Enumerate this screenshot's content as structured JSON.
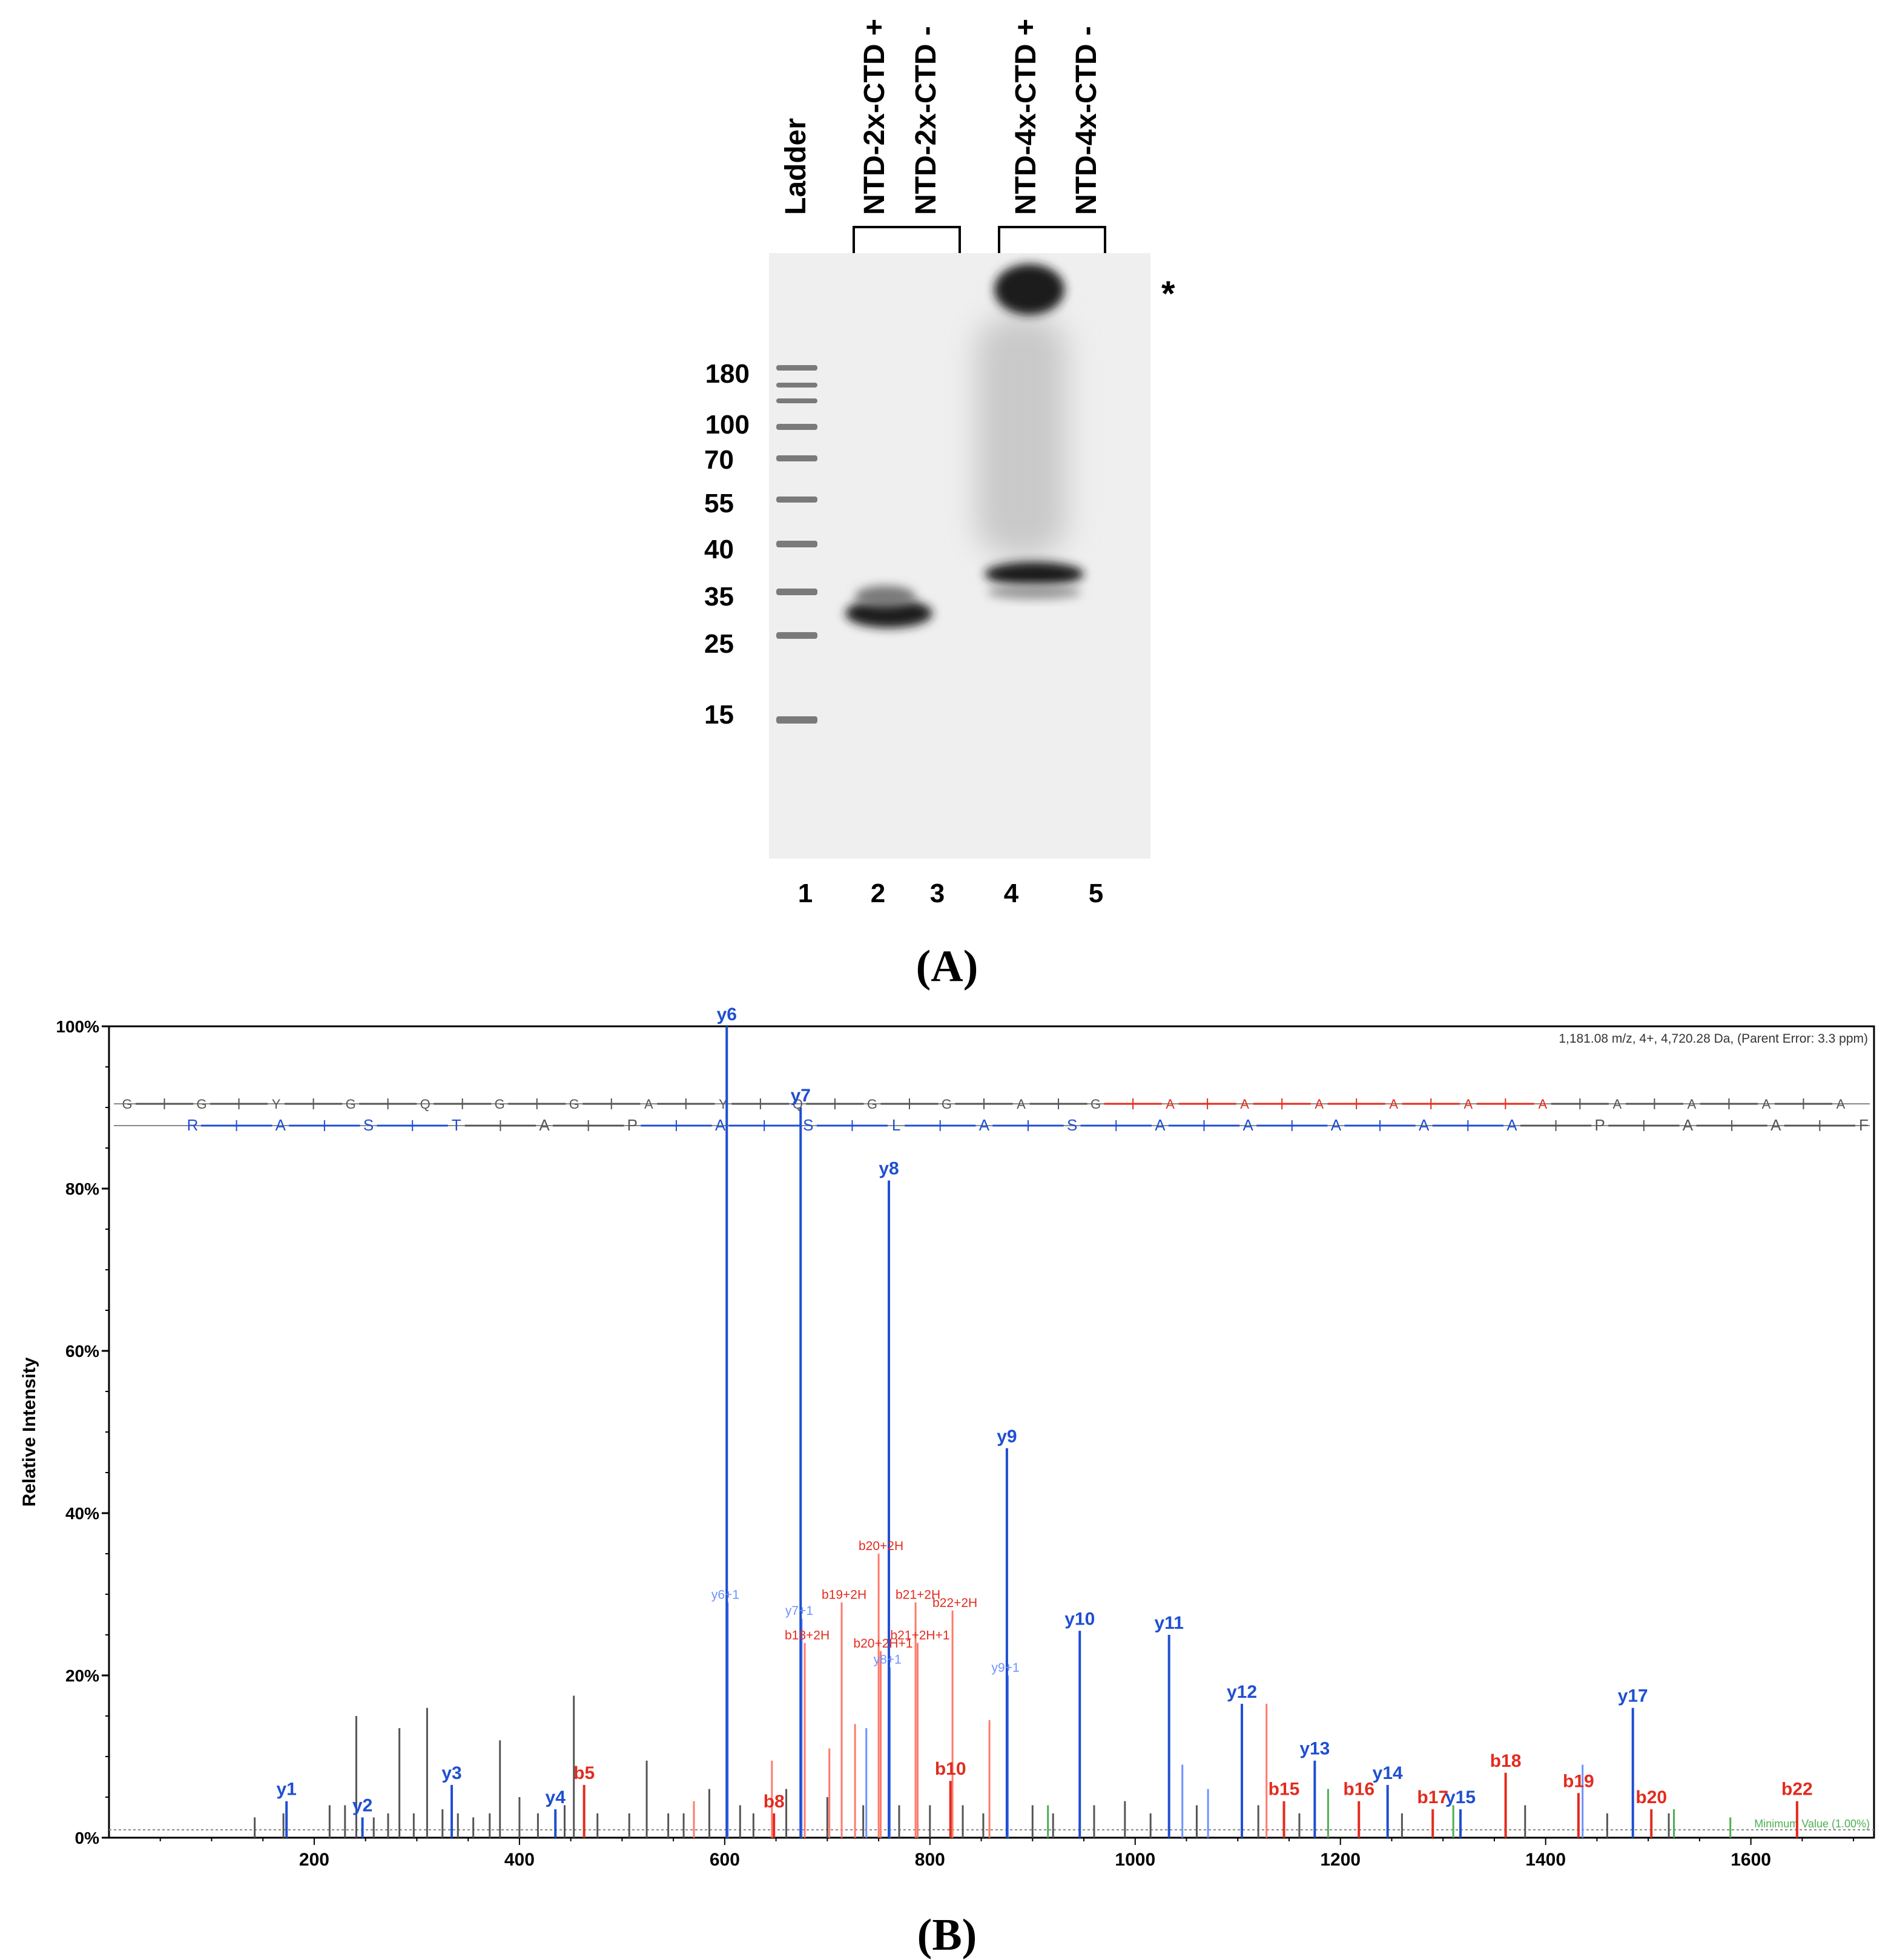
{
  "panelA": {
    "caption": "(A)",
    "lane_headers": [
      "Ladder",
      "NTD-2x-CTD +",
      "NTD-2x-CTD -",
      "NTD-4x-CTD +",
      "NTD-4x-CTD -"
    ],
    "mw_markers": [
      "180",
      "100",
      "70",
      "55",
      "40",
      "35",
      "25",
      "15"
    ],
    "lane_numbers": [
      "1",
      "2",
      "3",
      "4",
      "5"
    ],
    "asterisk": "*",
    "colors": {
      "gel_background": "#efefef",
      "band": "#222222",
      "text": "#000000"
    }
  },
  "panelB": {
    "caption": "(B)",
    "precursor_info": "1,181.08 m/z, 4+, 4,720.28 Da, (Parent Error: 3.3 ppm)",
    "min_value_label": "Minimum Value (1.00%)",
    "sequence_b": [
      "G",
      "G",
      "Y",
      "G",
      "Q",
      "G",
      "G",
      "A",
      "Y",
      "Q",
      "G",
      "G",
      "A",
      "G",
      "A",
      "A",
      "A",
      "A",
      "A",
      "A",
      "A",
      "A",
      "A",
      "A"
    ],
    "sequence_y": [
      "R",
      "A",
      "S",
      "T",
      "A",
      "P",
      "A",
      "S",
      "L",
      "A",
      "S",
      "A",
      "A",
      "A",
      "A",
      "A",
      "P",
      "A",
      "A",
      "F"
    ],
    "colors": {
      "b_ion": "#e32b1e",
      "y_ion": "#1f4fd1",
      "b_ion_light": "#ff7a6a",
      "y_ion_light": "#6f92ff",
      "unassigned": "#555555",
      "other": "#4caf50"
    }
  },
  "chart_data": {
    "type": "bar",
    "title": "",
    "xlabel": "",
    "ylabel": "Relative Intensity",
    "xlim": [
      0,
      1720
    ],
    "ylim": [
      0,
      100
    ],
    "x_ticks": [
      200,
      400,
      600,
      800,
      1000,
      1200,
      1400,
      1600
    ],
    "y_ticks": [
      "0%",
      "20%",
      "40%",
      "60%",
      "80%",
      "100%"
    ],
    "labeled_peaks": [
      {
        "label": "y1",
        "mz": 173,
        "intensity": 4.5,
        "ion": "y"
      },
      {
        "label": "y2",
        "mz": 247,
        "intensity": 2.5,
        "ion": "y"
      },
      {
        "label": "y3",
        "mz": 334,
        "intensity": 6.5,
        "ion": "y"
      },
      {
        "label": "y4",
        "mz": 435,
        "intensity": 3.5,
        "ion": "y"
      },
      {
        "label": "b5",
        "mz": 463,
        "intensity": 6.5,
        "ion": "b"
      },
      {
        "label": "y6",
        "mz": 602,
        "intensity": 100,
        "ion": "y"
      },
      {
        "label": "b8",
        "mz": 648,
        "intensity": 3,
        "ion": "b"
      },
      {
        "label": "y7",
        "mz": 674,
        "intensity": 90,
        "ion": "y"
      },
      {
        "label": "y8",
        "mz": 760,
        "intensity": 81,
        "ion": "y"
      },
      {
        "label": "b10",
        "mz": 820,
        "intensity": 7,
        "ion": "b"
      },
      {
        "label": "y9",
        "mz": 875,
        "intensity": 48,
        "ion": "y"
      },
      {
        "label": "y10",
        "mz": 946,
        "intensity": 25.5,
        "ion": "y"
      },
      {
        "label": "y11",
        "mz": 1033,
        "intensity": 25,
        "ion": "y"
      },
      {
        "label": "y12",
        "mz": 1104,
        "intensity": 16.5,
        "ion": "y"
      },
      {
        "label": "b15",
        "mz": 1145,
        "intensity": 4.5,
        "ion": "b"
      },
      {
        "label": "y13",
        "mz": 1175,
        "intensity": 9.5,
        "ion": "y"
      },
      {
        "label": "b16",
        "mz": 1218,
        "intensity": 4.5,
        "ion": "b"
      },
      {
        "label": "y14",
        "mz": 1246,
        "intensity": 6.5,
        "ion": "y"
      },
      {
        "label": "b17",
        "mz": 1290,
        "intensity": 3.5,
        "ion": "b"
      },
      {
        "label": "y15",
        "mz": 1317,
        "intensity": 3.5,
        "ion": "y"
      },
      {
        "label": "b18",
        "mz": 1361,
        "intensity": 8,
        "ion": "b"
      },
      {
        "label": "b19",
        "mz": 1432,
        "intensity": 5.5,
        "ion": "b"
      },
      {
        "label": "y17",
        "mz": 1485,
        "intensity": 16,
        "ion": "y"
      },
      {
        "label": "b20",
        "mz": 1503,
        "intensity": 3.5,
        "ion": "b"
      },
      {
        "label": "b22",
        "mz": 1645,
        "intensity": 4.5,
        "ion": "b"
      }
    ],
    "minor_labeled_peaks": [
      {
        "label": "y6+1",
        "mz": 603,
        "intensity": 29,
        "ion": "y"
      },
      {
        "label": "y7+1",
        "mz": 675,
        "intensity": 27,
        "ion": "y"
      },
      {
        "label": "b18+2H",
        "mz": 678,
        "intensity": 24,
        "ion": "b"
      },
      {
        "label": "b19+2H",
        "mz": 714,
        "intensity": 29,
        "ion": "b"
      },
      {
        "label": "b20+2H",
        "mz": 750,
        "intensity": 35,
        "ion": "b"
      },
      {
        "label": "b20+2H+1",
        "mz": 752,
        "intensity": 23,
        "ion": "b"
      },
      {
        "label": "y8+1",
        "mz": 761,
        "intensity": 21,
        "ion": "y"
      },
      {
        "label": "b21+2H",
        "mz": 786,
        "intensity": 29,
        "ion": "b"
      },
      {
        "label": "b21+2H+1",
        "mz": 788,
        "intensity": 24,
        "ion": "b"
      },
      {
        "label": "b22+2H",
        "mz": 822,
        "intensity": 28,
        "ion": "b"
      },
      {
        "label": "y9+1",
        "mz": 876,
        "intensity": 20,
        "ion": "y"
      }
    ],
    "other_peaks": [
      {
        "mz": 142,
        "intensity": 2.5,
        "ion": "u"
      },
      {
        "mz": 170,
        "intensity": 3,
        "ion": "u"
      },
      {
        "mz": 215,
        "intensity": 4,
        "ion": "u"
      },
      {
        "mz": 230,
        "intensity": 4,
        "ion": "u"
      },
      {
        "mz": 241,
        "intensity": 15,
        "ion": "u"
      },
      {
        "mz": 258,
        "intensity": 2.5,
        "ion": "u"
      },
      {
        "mz": 272,
        "intensity": 3,
        "ion": "u"
      },
      {
        "mz": 283,
        "intensity": 13.5,
        "ion": "u"
      },
      {
        "mz": 297,
        "intensity": 3,
        "ion": "u"
      },
      {
        "mz": 310,
        "intensity": 16,
        "ion": "u"
      },
      {
        "mz": 325,
        "intensity": 3.5,
        "ion": "u"
      },
      {
        "mz": 340,
        "intensity": 3,
        "ion": "u"
      },
      {
        "mz": 355,
        "intensity": 2.5,
        "ion": "u"
      },
      {
        "mz": 371,
        "intensity": 3,
        "ion": "u"
      },
      {
        "mz": 381,
        "intensity": 12,
        "ion": "u"
      },
      {
        "mz": 400,
        "intensity": 5,
        "ion": "u"
      },
      {
        "mz": 418,
        "intensity": 3,
        "ion": "u"
      },
      {
        "mz": 444,
        "intensity": 4,
        "ion": "u"
      },
      {
        "mz": 453,
        "intensity": 17.5,
        "ion": "u"
      },
      {
        "mz": 476,
        "intensity": 3,
        "ion": "u"
      },
      {
        "mz": 507,
        "intensity": 3,
        "ion": "u"
      },
      {
        "mz": 524,
        "intensity": 9.5,
        "ion": "u"
      },
      {
        "mz": 545,
        "intensity": 3,
        "ion": "u"
      },
      {
        "mz": 560,
        "intensity": 3,
        "ion": "u"
      },
      {
        "mz": 585,
        "intensity": 6,
        "ion": "u"
      },
      {
        "mz": 615,
        "intensity": 4,
        "ion": "u"
      },
      {
        "mz": 628,
        "intensity": 3,
        "ion": "u"
      },
      {
        "mz": 660,
        "intensity": 6,
        "ion": "u"
      },
      {
        "mz": 700,
        "intensity": 5,
        "ion": "u"
      },
      {
        "mz": 735,
        "intensity": 4,
        "ion": "u"
      },
      {
        "mz": 770,
        "intensity": 4,
        "ion": "u"
      },
      {
        "mz": 800,
        "intensity": 4,
        "ion": "u"
      },
      {
        "mz": 832,
        "intensity": 4,
        "ion": "u"
      },
      {
        "mz": 852,
        "intensity": 3,
        "ion": "u"
      },
      {
        "mz": 900,
        "intensity": 4,
        "ion": "u"
      },
      {
        "mz": 920,
        "intensity": 3,
        "ion": "u"
      },
      {
        "mz": 960,
        "intensity": 4,
        "ion": "u"
      },
      {
        "mz": 990,
        "intensity": 4.5,
        "ion": "u"
      },
      {
        "mz": 1015,
        "intensity": 3,
        "ion": "u"
      },
      {
        "mz": 1060,
        "intensity": 4,
        "ion": "u"
      },
      {
        "mz": 1120,
        "intensity": 4,
        "ion": "u"
      },
      {
        "mz": 1160,
        "intensity": 3,
        "ion": "u"
      },
      {
        "mz": 1260,
        "intensity": 3,
        "ion": "u"
      },
      {
        "mz": 1380,
        "intensity": 4,
        "ion": "u"
      },
      {
        "mz": 1460,
        "intensity": 3,
        "ion": "u"
      },
      {
        "mz": 1520,
        "intensity": 3,
        "ion": "u"
      },
      {
        "mz": 646,
        "intensity": 9.5,
        "ion": "bl"
      },
      {
        "mz": 702,
        "intensity": 11,
        "ion": "bl"
      },
      {
        "mz": 727,
        "intensity": 14,
        "ion": "bl"
      },
      {
        "mz": 858,
        "intensity": 14.5,
        "ion": "bl"
      },
      {
        "mz": 1128,
        "intensity": 16.5,
        "ion": "bl"
      },
      {
        "mz": 570,
        "intensity": 4.5,
        "ion": "bl"
      },
      {
        "mz": 738,
        "intensity": 13.5,
        "ion": "yl"
      },
      {
        "mz": 1046,
        "intensity": 9,
        "ion": "yl"
      },
      {
        "mz": 1071,
        "intensity": 6,
        "ion": "yl"
      },
      {
        "mz": 1436,
        "intensity": 9,
        "ion": "yl"
      },
      {
        "mz": 1188,
        "intensity": 6,
        "ion": "g"
      },
      {
        "mz": 915,
        "intensity": 4,
        "ion": "g"
      },
      {
        "mz": 1310,
        "intensity": 4,
        "ion": "g"
      },
      {
        "mz": 1525,
        "intensity": 3.5,
        "ion": "g"
      },
      {
        "mz": 1580,
        "intensity": 2.5,
        "ion": "g"
      }
    ]
  }
}
